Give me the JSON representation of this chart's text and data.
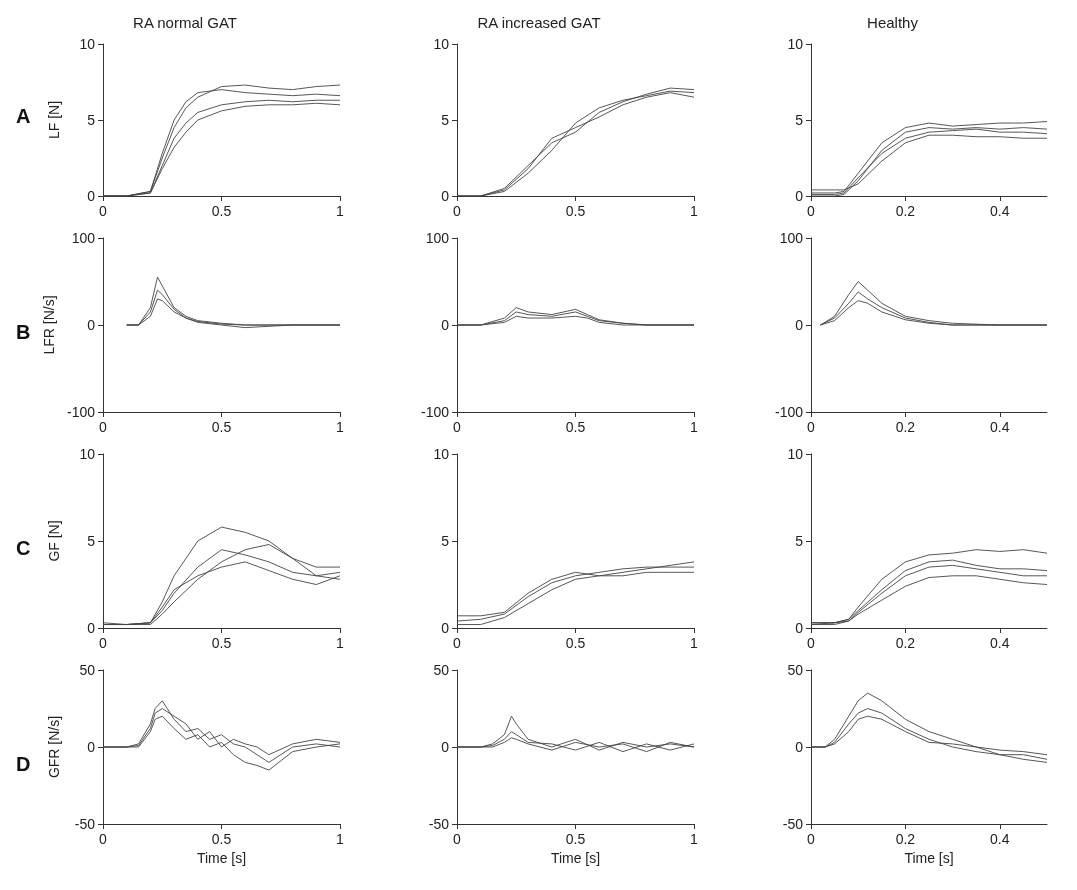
{
  "chart_data": [
    {
      "type": "line",
      "title": "RA normal GAT",
      "ylabel": "LF [N]",
      "annotations": [
        "A"
      ],
      "xlim": [
        0,
        1
      ],
      "xticks": [
        0,
        0.5,
        1
      ],
      "ylim": [
        0,
        10
      ],
      "yticks": [
        0,
        5,
        10
      ],
      "x": [
        0,
        0.1,
        0.2,
        0.25,
        0.3,
        0.35,
        0.4,
        0.5,
        0.6,
        0.7,
        0.8,
        0.9,
        1
      ],
      "series": [
        {
          "color": "#444444",
          "values": [
            0,
            0,
            0.3,
            2.5,
            4.5,
            5.8,
            6.5,
            7.2,
            7.3,
            7.1,
            7.0,
            7.2,
            7.3
          ]
        },
        {
          "color": "#444444",
          "values": [
            0,
            0,
            0.2,
            2,
            3.8,
            4.8,
            5.5,
            6.0,
            6.2,
            6.3,
            6.2,
            6.3,
            6.3
          ]
        },
        {
          "color": "#444444",
          "values": [
            0,
            0,
            0.2,
            1.8,
            3.2,
            4.2,
            5.0,
            5.6,
            5.9,
            6.0,
            6.0,
            6.1,
            6.0
          ]
        },
        {
          "color": "#444444",
          "values": [
            0,
            0,
            0.3,
            2.8,
            5.0,
            6.2,
            6.8,
            7.0,
            6.8,
            6.7,
            6.6,
            6.7,
            6.6
          ]
        }
      ]
    },
    {
      "type": "line",
      "title": "RA increased GAT",
      "xlim": [
        0,
        1
      ],
      "xticks": [
        0,
        0.5,
        1
      ],
      "ylim": [
        0,
        10
      ],
      "yticks": [
        0,
        5,
        10
      ],
      "x": [
        0,
        0.1,
        0.2,
        0.3,
        0.4,
        0.5,
        0.6,
        0.7,
        0.8,
        0.9,
        1
      ],
      "series": [
        {
          "color": "#444444",
          "values": [
            0,
            0,
            0.3,
            1.5,
            3.0,
            4.8,
            5.8,
            6.3,
            6.6,
            6.9,
            6.8
          ]
        },
        {
          "color": "#444444",
          "values": [
            0,
            0,
            0.5,
            2.0,
            3.5,
            4.2,
            5.5,
            6.2,
            6.7,
            7.1,
            7.0
          ]
        },
        {
          "color": "#444444",
          "values": [
            0,
            0,
            0.4,
            1.8,
            3.8,
            4.5,
            5.2,
            6.0,
            6.5,
            6.8,
            6.5
          ]
        }
      ]
    },
    {
      "type": "line",
      "title": "Healthy",
      "xlim": [
        0,
        0.5
      ],
      "xticks": [
        0,
        0.2,
        0.4
      ],
      "ylim": [
        0,
        10
      ],
      "yticks": [
        0,
        5,
        10
      ],
      "x": [
        0,
        0.05,
        0.07,
        0.1,
        0.15,
        0.2,
        0.25,
        0.3,
        0.35,
        0.4,
        0.45,
        0.5
      ],
      "series": [
        {
          "color": "#444444",
          "values": [
            0,
            0,
            0.1,
            1.0,
            3.0,
            4.2,
            4.5,
            4.4,
            4.5,
            4.4,
            4.5,
            4.4
          ]
        },
        {
          "color": "#444444",
          "values": [
            0.2,
            0.2,
            0.3,
            1.5,
            3.5,
            4.5,
            4.8,
            4.6,
            4.7,
            4.8,
            4.8,
            4.9
          ]
        },
        {
          "color": "#444444",
          "values": [
            0.4,
            0.4,
            0.4,
            0.8,
            2.3,
            3.5,
            4.0,
            4.0,
            3.9,
            3.9,
            3.8,
            3.8
          ]
        },
        {
          "color": "#444444",
          "values": [
            0.1,
            0.1,
            0.2,
            1.2,
            2.8,
            3.8,
            4.2,
            4.3,
            4.4,
            4.2,
            4.2,
            4.1
          ]
        }
      ]
    },
    {
      "type": "line",
      "ylabel": "LFR [N/s]",
      "annotations": [
        "B"
      ],
      "xlim": [
        0,
        1
      ],
      "xticks": [
        0,
        0.5,
        1
      ],
      "ylim": [
        -100,
        100
      ],
      "yticks": [
        -100,
        0,
        100
      ],
      "x": [
        0.1,
        0.15,
        0.2,
        0.23,
        0.25,
        0.3,
        0.35,
        0.4,
        0.5,
        0.6,
        0.8,
        1
      ],
      "series": [
        {
          "color": "#444444",
          "values": [
            0,
            0,
            20,
            55,
            45,
            20,
            10,
            5,
            2,
            0,
            0,
            0
          ]
        },
        {
          "color": "#444444",
          "values": [
            0,
            0,
            15,
            40,
            35,
            18,
            8,
            4,
            1,
            0,
            0,
            0
          ]
        },
        {
          "color": "#444444",
          "values": [
            0,
            0,
            10,
            30,
            28,
            15,
            8,
            3,
            0,
            -3,
            0,
            0
          ]
        }
      ]
    },
    {
      "type": "line",
      "xlim": [
        0,
        1
      ],
      "xticks": [
        0,
        0.5,
        1
      ],
      "ylim": [
        -100,
        100
      ],
      "yticks": [
        -100,
        0,
        100
      ],
      "x": [
        0,
        0.1,
        0.2,
        0.25,
        0.3,
        0.4,
        0.5,
        0.55,
        0.6,
        0.7,
        0.8,
        1
      ],
      "series": [
        {
          "color": "#444444",
          "values": [
            0,
            0,
            5,
            15,
            12,
            10,
            15,
            10,
            5,
            2,
            0,
            0
          ]
        },
        {
          "color": "#444444",
          "values": [
            0,
            0,
            8,
            20,
            15,
            12,
            18,
            12,
            6,
            2,
            0,
            0
          ]
        },
        {
          "color": "#444444",
          "values": [
            0,
            0,
            3,
            10,
            8,
            8,
            10,
            8,
            3,
            0,
            0,
            0
          ]
        }
      ]
    },
    {
      "type": "line",
      "xlim": [
        0,
        0.5
      ],
      "xticks": [
        0,
        0.2,
        0.4
      ],
      "ylim": [
        -100,
        100
      ],
      "yticks": [
        -100,
        0,
        100
      ],
      "x": [
        0.02,
        0.05,
        0.08,
        0.1,
        0.12,
        0.15,
        0.2,
        0.25,
        0.3,
        0.4,
        0.5
      ],
      "series": [
        {
          "color": "#444444",
          "values": [
            0,
            10,
            35,
            50,
            40,
            25,
            10,
            5,
            2,
            0,
            0
          ]
        },
        {
          "color": "#444444",
          "values": [
            0,
            8,
            25,
            38,
            30,
            20,
            8,
            3,
            0,
            0,
            0
          ]
        },
        {
          "color": "#444444",
          "values": [
            0,
            5,
            20,
            28,
            25,
            15,
            6,
            2,
            0,
            0,
            0
          ]
        }
      ]
    },
    {
      "type": "line",
      "ylabel": "GF [N]",
      "annotations": [
        "C"
      ],
      "xlim": [
        0,
        1
      ],
      "xticks": [
        0,
        0.5,
        1
      ],
      "ylim": [
        0,
        10
      ],
      "yticks": [
        0,
        5,
        10
      ],
      "x": [
        0,
        0.1,
        0.2,
        0.25,
        0.3,
        0.4,
        0.5,
        0.6,
        0.7,
        0.8,
        0.9,
        1
      ],
      "series": [
        {
          "color": "#444444",
          "values": [
            0.2,
            0.2,
            0.3,
            1.5,
            3.0,
            5.0,
            5.8,
            5.5,
            5.0,
            4.0,
            3.5,
            3.5
          ]
        },
        {
          "color": "#444444",
          "values": [
            0.2,
            0.2,
            0.3,
            1.0,
            2.0,
            3.5,
            4.5,
            4.2,
            3.8,
            3.2,
            3.0,
            3.2
          ]
        },
        {
          "color": "#444444",
          "values": [
            0.2,
            0.2,
            0.2,
            0.8,
            1.5,
            2.8,
            3.8,
            4.5,
            4.8,
            4.0,
            3.0,
            2.8
          ]
        },
        {
          "color": "#444444",
          "values": [
            0.3,
            0.2,
            0.3,
            1.2,
            2.2,
            3.0,
            3.5,
            3.8,
            3.3,
            2.8,
            2.5,
            3.0
          ]
        }
      ]
    },
    {
      "type": "line",
      "xlim": [
        0,
        1
      ],
      "xticks": [
        0,
        0.5,
        1
      ],
      "ylim": [
        0,
        10
      ],
      "yticks": [
        0,
        5,
        10
      ],
      "x": [
        0,
        0.1,
        0.2,
        0.3,
        0.4,
        0.5,
        0.6,
        0.7,
        0.8,
        0.9,
        1
      ],
      "series": [
        {
          "color": "#444444",
          "values": [
            0.4,
            0.5,
            0.8,
            1.8,
            2.6,
            3.0,
            3.2,
            3.4,
            3.5,
            3.5,
            3.5
          ]
        },
        {
          "color": "#444444",
          "values": [
            0.2,
            0.2,
            0.6,
            1.4,
            2.2,
            2.8,
            3.0,
            3.0,
            3.2,
            3.2,
            3.2
          ]
        },
        {
          "color": "#444444",
          "values": [
            0.7,
            0.7,
            0.9,
            2.0,
            2.8,
            3.2,
            3.0,
            3.2,
            3.4,
            3.6,
            3.8
          ]
        }
      ]
    },
    {
      "type": "line",
      "xlim": [
        0,
        0.5
      ],
      "xticks": [
        0,
        0.2,
        0.4
      ],
      "ylim": [
        0,
        10
      ],
      "yticks": [
        0,
        5,
        10
      ],
      "x": [
        0,
        0.05,
        0.08,
        0.1,
        0.15,
        0.2,
        0.25,
        0.3,
        0.35,
        0.4,
        0.45,
        0.5
      ],
      "series": [
        {
          "color": "#444444",
          "values": [
            0.3,
            0.3,
            0.5,
            1.2,
            2.8,
            3.8,
            4.2,
            4.3,
            4.5,
            4.4,
            4.5,
            4.3
          ]
        },
        {
          "color": "#444444",
          "values": [
            0.2,
            0.2,
            0.4,
            0.9,
            2.0,
            3.0,
            3.5,
            3.6,
            3.4,
            3.2,
            3.0,
            3.0
          ]
        },
        {
          "color": "#444444",
          "values": [
            0.3,
            0.3,
            0.4,
            0.8,
            1.6,
            2.4,
            2.9,
            3.0,
            3.0,
            2.8,
            2.6,
            2.5
          ]
        },
        {
          "color": "#444444",
          "values": [
            0.2,
            0.3,
            0.5,
            1.0,
            2.2,
            3.3,
            3.8,
            3.9,
            3.6,
            3.4,
            3.4,
            3.3
          ]
        }
      ]
    },
    {
      "type": "line",
      "ylabel": "GFR [N/s]",
      "xlabel": "Time [s]",
      "annotations": [
        "D"
      ],
      "xlim": [
        0,
        1
      ],
      "xticks": [
        0,
        0.5,
        1
      ],
      "ylim": [
        -50,
        50
      ],
      "yticks": [
        -50,
        0,
        50
      ],
      "x": [
        0,
        0.1,
        0.15,
        0.2,
        0.22,
        0.25,
        0.3,
        0.35,
        0.4,
        0.45,
        0.5,
        0.55,
        0.6,
        0.65,
        0.7,
        0.8,
        0.9,
        1
      ],
      "series": [
        {
          "color": "#444444",
          "values": [
            0,
            0,
            2,
            15,
            25,
            30,
            18,
            10,
            12,
            5,
            8,
            2,
            0,
            -5,
            -10,
            0,
            2,
            0
          ]
        },
        {
          "color": "#444444",
          "values": [
            0,
            0,
            0,
            10,
            18,
            20,
            12,
            5,
            8,
            0,
            3,
            -5,
            -10,
            -12,
            -15,
            -3,
            0,
            2
          ]
        },
        {
          "color": "#444444",
          "values": [
            0,
            0,
            1,
            12,
            22,
            25,
            20,
            15,
            5,
            10,
            0,
            5,
            2,
            0,
            -5,
            2,
            5,
            3
          ]
        }
      ]
    },
    {
      "type": "line",
      "xlabel": "Time [s]",
      "xlim": [
        0,
        1
      ],
      "xticks": [
        0,
        0.5,
        1
      ],
      "ylim": [
        -50,
        50
      ],
      "yticks": [
        -50,
        0,
        50
      ],
      "x": [
        0,
        0.1,
        0.15,
        0.2,
        0.23,
        0.25,
        0.3,
        0.4,
        0.5,
        0.6,
        0.7,
        0.8,
        0.9,
        1
      ],
      "series": [
        {
          "color": "#444444",
          "values": [
            0,
            0,
            2,
            8,
            20,
            15,
            5,
            0,
            5,
            -2,
            3,
            0,
            2,
            0
          ]
        },
        {
          "color": "#444444",
          "values": [
            0,
            0,
            1,
            5,
            10,
            8,
            3,
            2,
            -2,
            3,
            -3,
            2,
            -2,
            2
          ]
        },
        {
          "color": "#444444",
          "values": [
            0,
            0,
            0,
            3,
            6,
            5,
            2,
            -2,
            3,
            0,
            2,
            -3,
            3,
            0
          ]
        }
      ]
    },
    {
      "type": "line",
      "xlabel": "Time [s]",
      "xlim": [
        0,
        0.5
      ],
      "xticks": [
        0,
        0.2,
        0.4
      ],
      "ylim": [
        -50,
        50
      ],
      "yticks": [
        -50,
        0,
        50
      ],
      "x": [
        0,
        0.03,
        0.05,
        0.08,
        0.1,
        0.12,
        0.15,
        0.2,
        0.25,
        0.3,
        0.35,
        0.4,
        0.45,
        0.5
      ],
      "series": [
        {
          "color": "#444444",
          "values": [
            0,
            0,
            5,
            20,
            30,
            35,
            30,
            18,
            10,
            5,
            0,
            -5,
            -8,
            -10
          ]
        },
        {
          "color": "#444444",
          "values": [
            0,
            0,
            3,
            15,
            22,
            25,
            22,
            12,
            5,
            0,
            -3,
            -5,
            -5,
            -8
          ]
        },
        {
          "color": "#444444",
          "values": [
            0,
            0,
            2,
            10,
            18,
            20,
            18,
            10,
            3,
            2,
            0,
            -2,
            -3,
            -5
          ]
        }
      ]
    }
  ]
}
